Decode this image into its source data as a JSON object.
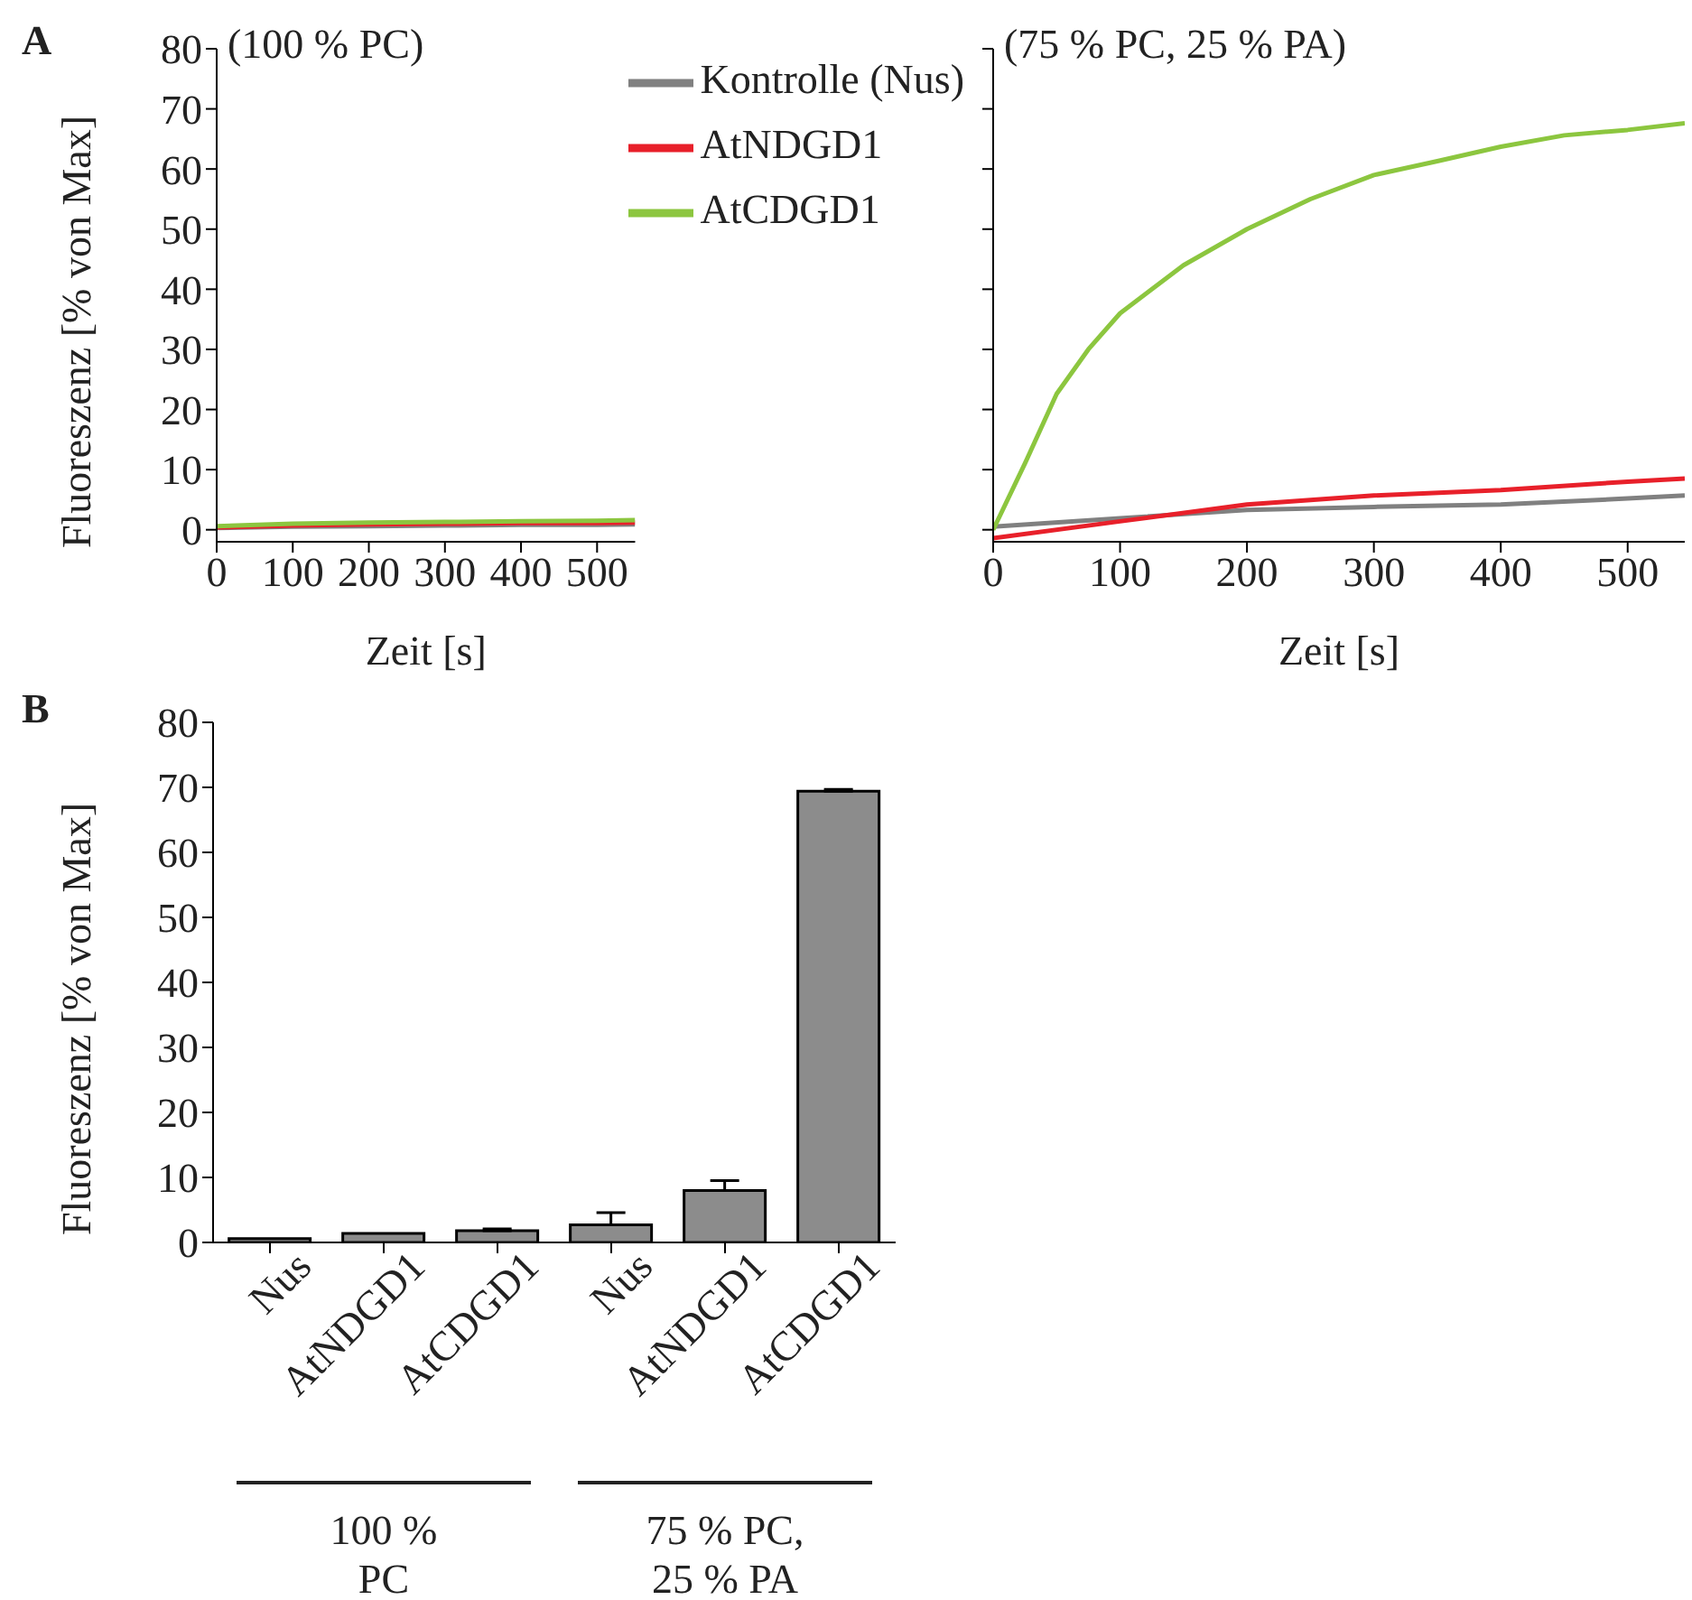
{
  "chart_data": [
    {
      "type": "line",
      "title": "(100 % PC)",
      "xlabel": "Zeit [s]",
      "ylabel": "Fluoreszenz [% von Max]",
      "annotations": [
        "A"
      ],
      "legend": "top right",
      "xlim": [
        0,
        550
      ],
      "xticks": [
        0,
        100,
        200,
        300,
        400,
        500
      ],
      "ylim": [
        -2,
        80
      ],
      "yticks": [
        0,
        10,
        20,
        30,
        40,
        50,
        60,
        70,
        80
      ],
      "series": [
        {
          "name": "Kontrolle (Nus)",
          "color": "#808080",
          "x": [
            0,
            100,
            200,
            300,
            400,
            500,
            550
          ],
          "values": [
            0.3,
            0.5,
            0.6,
            0.7,
            0.8,
            0.8,
            0.9
          ]
        },
        {
          "name": "AtNDGD1",
          "color": "#e8202a",
          "x": [
            0,
            100,
            200,
            300,
            400,
            500,
            550
          ],
          "values": [
            0.4,
            0.7,
            0.9,
            1.0,
            1.1,
            1.1,
            1.2
          ]
        },
        {
          "name": "AtCDGD1",
          "color": "#8cc63f",
          "x": [
            0,
            100,
            200,
            300,
            400,
            500,
            550
          ],
          "values": [
            0.6,
            1.0,
            1.2,
            1.3,
            1.4,
            1.5,
            1.6
          ]
        }
      ]
    },
    {
      "type": "line",
      "title": "(75 % PC, 25 % PA)",
      "xlabel": "Zeit [s]",
      "tick_labels": "x",
      "xlim": [
        0,
        545
      ],
      "xticks": [
        0,
        100,
        200,
        300,
        400,
        500
      ],
      "ylim": [
        -2,
        80
      ],
      "yticks": [
        0,
        10,
        20,
        30,
        40,
        50,
        60,
        70,
        80
      ],
      "series": [
        {
          "color": "#808080",
          "x": [
            0,
            100,
            200,
            300,
            400,
            500,
            545
          ],
          "values": [
            0.5,
            1.9,
            3.3,
            3.8,
            4.2,
            5.2,
            5.7
          ]
        },
        {
          "color": "#e8202a",
          "x": [
            0,
            100,
            200,
            300,
            400,
            500,
            545
          ],
          "values": [
            -1.4,
            1.4,
            4.2,
            5.7,
            6.6,
            8,
            8.5
          ]
        },
        {
          "color": "#8cc63f",
          "x": [
            0,
            25,
            50,
            75,
            100,
            150,
            200,
            250,
            300,
            350,
            400,
            450,
            500,
            545
          ],
          "values": [
            0,
            11,
            22.6,
            30,
            36,
            44,
            50,
            55,
            59,
            61.3,
            63.7,
            65.6,
            66.5,
            67.6
          ]
        }
      ]
    },
    {
      "type": "bar",
      "ylabel": "Fluoreszenz [% von Max]",
      "annotations": [
        "B",
        "100 % PC",
        "75 % PC, 25 % PA"
      ],
      "categories": [
        "Nus",
        "AtNDGD1",
        "AtCDGD1",
        "Nus",
        "AtNDGD1",
        "AtCDGD1"
      ],
      "values": [
        0.6,
        1.4,
        1.8,
        2.7,
        8.0,
        69.4
      ],
      "errors": [
        null,
        null,
        [
          1.8,
          2.1
        ],
        [
          2.7,
          4.6
        ],
        [
          8.0,
          9.5
        ],
        [
          69.4,
          69.7
        ]
      ],
      "color": "#8c8c8c",
      "ylim": [
        0,
        80
      ],
      "yticks": [
        0,
        10,
        20,
        30,
        40,
        50,
        60,
        70,
        80
      ]
    }
  ]
}
